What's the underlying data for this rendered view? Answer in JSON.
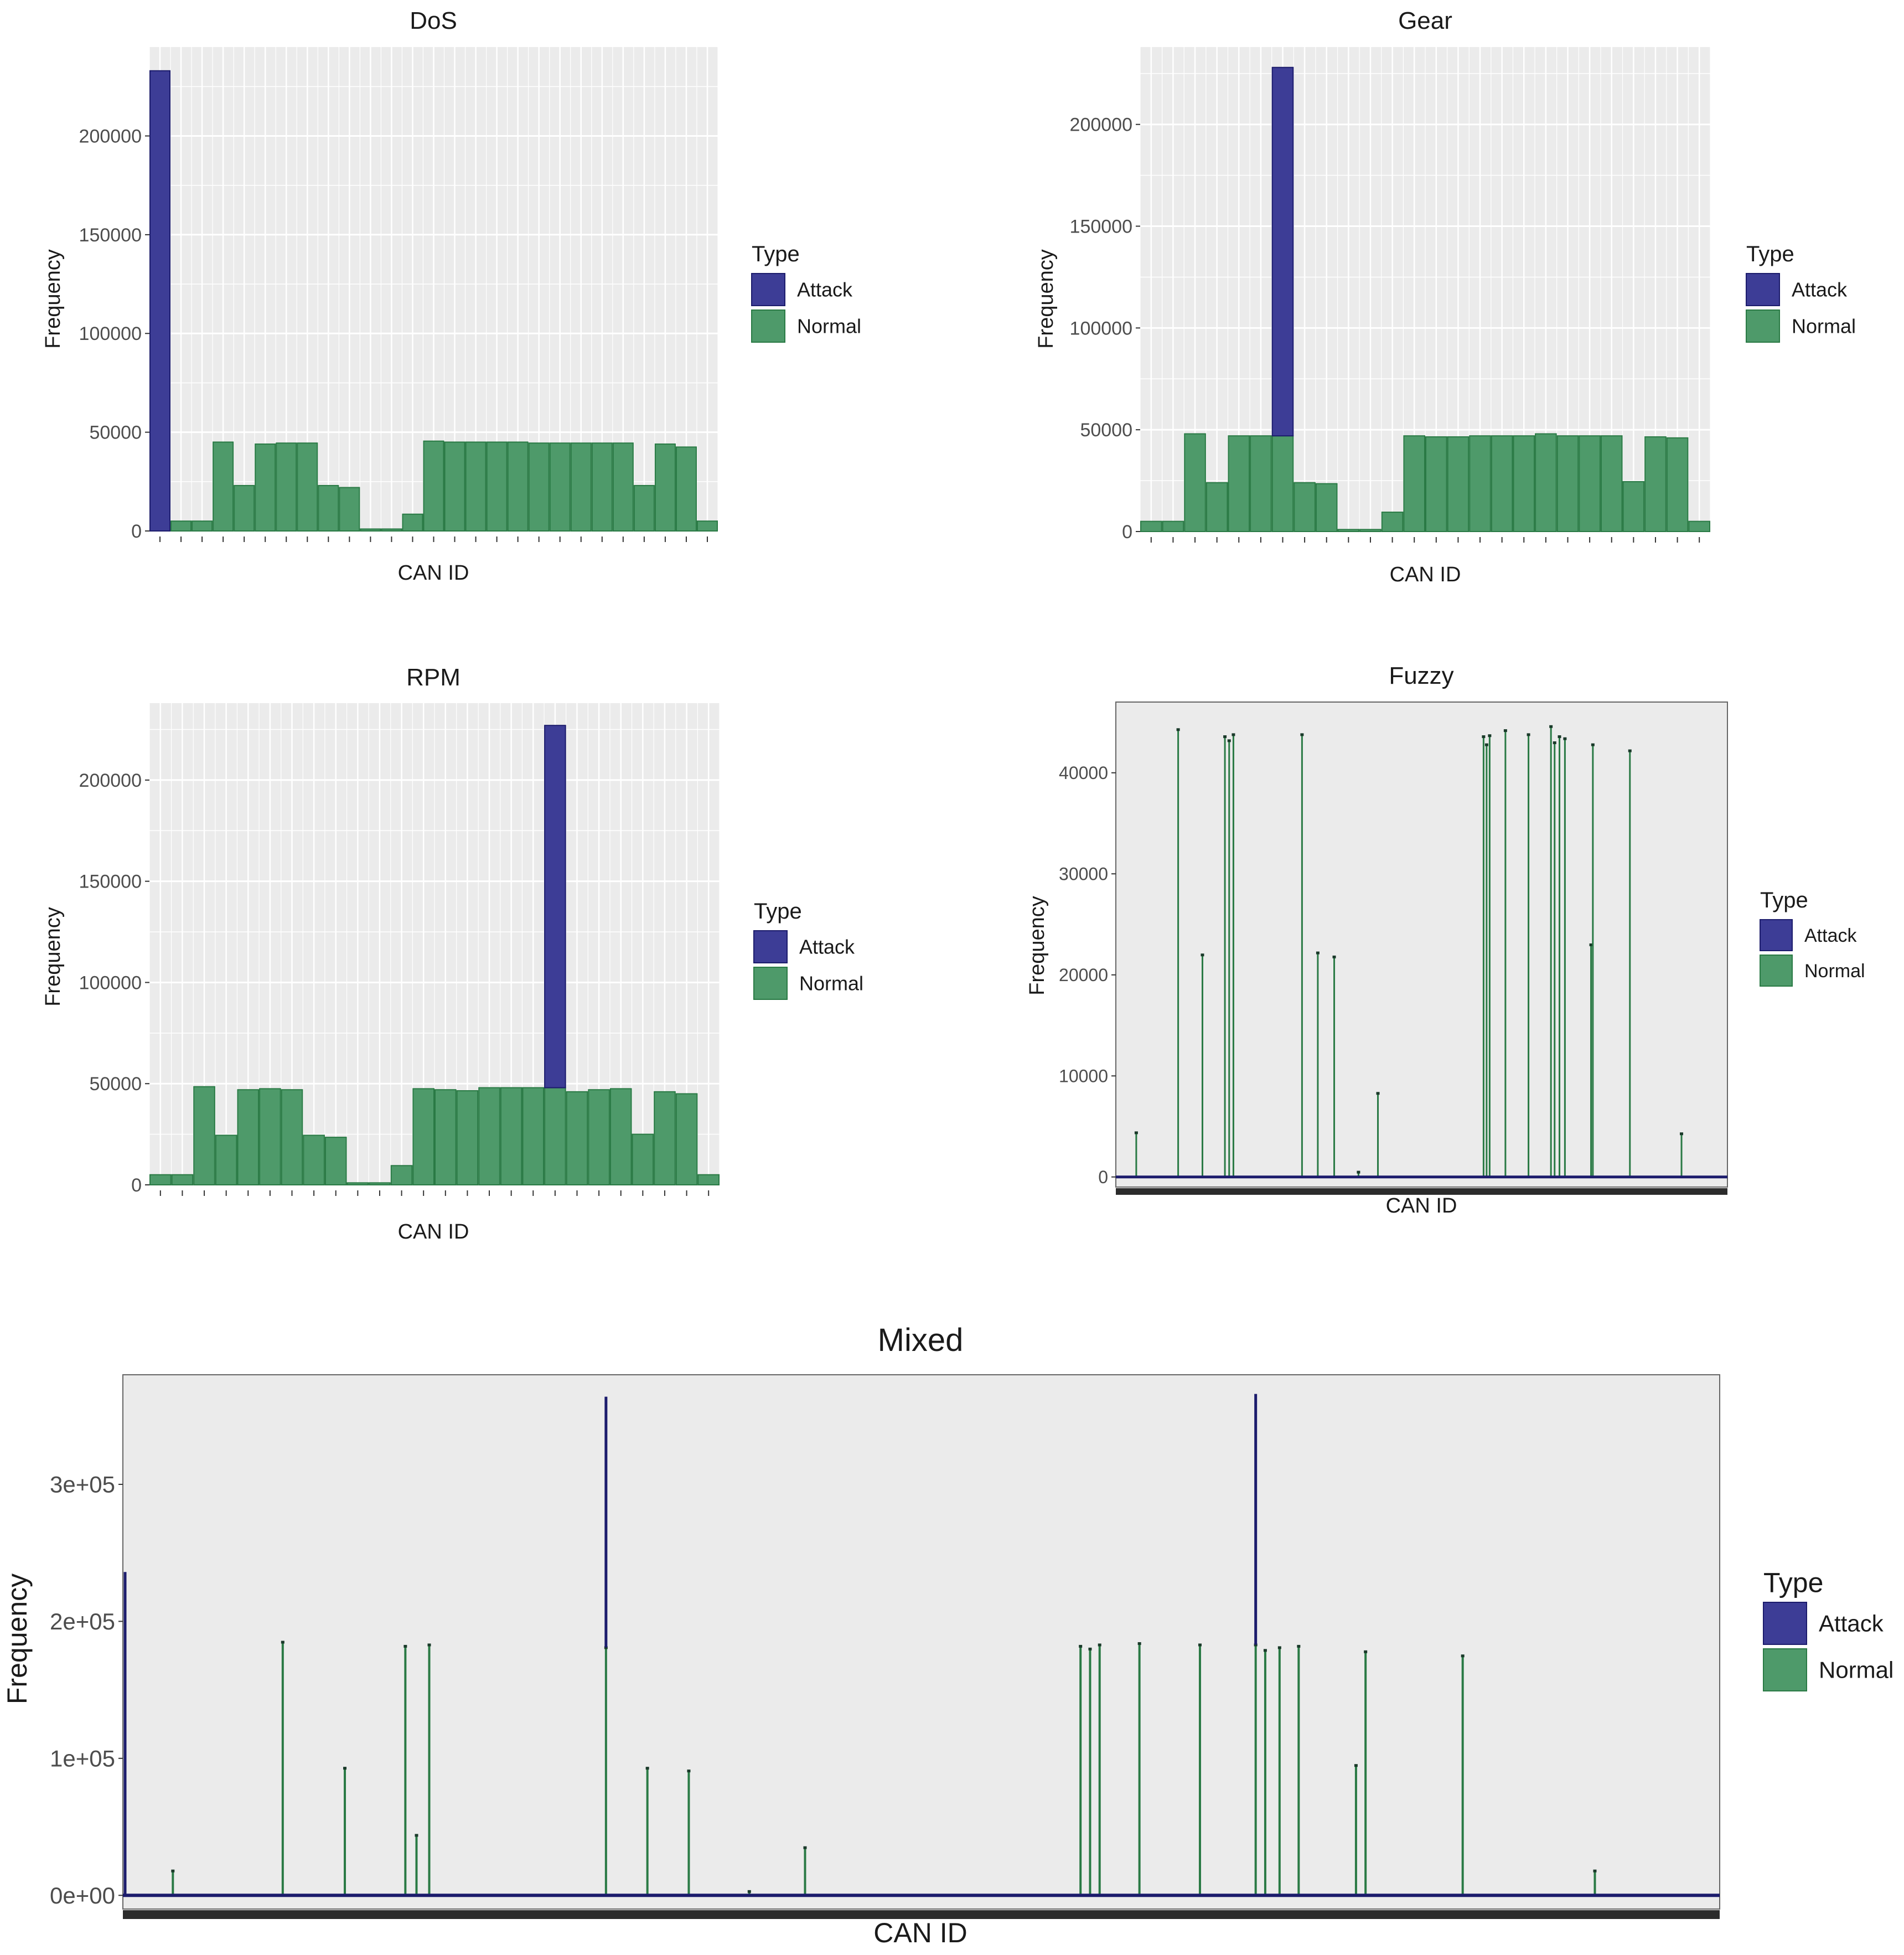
{
  "colors": {
    "attack": "#3d3d96",
    "normal": "#4e9a6a",
    "attack_line": "#1c1c6c",
    "normal_line": "#2a7a45",
    "panel": "#ebebeb",
    "grid": "#ffffff"
  },
  "chart_data": [
    {
      "id": "dos",
      "type": "bar",
      "title": "DoS",
      "xlabel": "CAN ID",
      "ylabel": "Frequency",
      "ylim": [
        0,
        245000
      ],
      "yticks": [
        0,
        50000,
        100000,
        150000,
        200000
      ],
      "ytick_labels": [
        "0",
        "50000",
        "100000",
        "150000",
        "200000"
      ],
      "legend": {
        "title": "Type",
        "entries": [
          "Attack",
          "Normal"
        ],
        "position": "right"
      },
      "series": [
        {
          "name": "Attack",
          "values": [
            233000,
            0,
            0,
            0,
            0,
            0,
            0,
            0,
            0,
            0,
            0,
            0,
            0,
            0,
            0,
            0,
            0,
            0,
            0,
            0,
            0,
            0,
            0,
            0,
            0,
            0,
            0
          ]
        },
        {
          "name": "Normal",
          "values": [
            0,
            5000,
            5000,
            45000,
            23000,
            44000,
            44500,
            44500,
            23000,
            22000,
            1000,
            1000,
            8500,
            45500,
            45000,
            45000,
            45000,
            45000,
            44500,
            44500,
            44500,
            44500,
            44500,
            23000,
            44000,
            42500,
            5000
          ]
        }
      ]
    },
    {
      "id": "gear",
      "type": "bar",
      "title": "Gear",
      "xlabel": "CAN ID",
      "ylabel": "Frequency",
      "ylim": [
        0,
        238000
      ],
      "yticks": [
        0,
        50000,
        100000,
        150000,
        200000
      ],
      "ytick_labels": [
        "0",
        "50000",
        "100000",
        "150000",
        "200000"
      ],
      "legend": {
        "title": "Type",
        "entries": [
          "Attack",
          "Normal"
        ],
        "position": "right"
      },
      "series": [
        {
          "name": "Normal",
          "values": [
            5000,
            5000,
            48000,
            24000,
            47000,
            47000,
            47000,
            24000,
            23500,
            1000,
            1000,
            9500,
            47000,
            46500,
            46500,
            47000,
            47000,
            47000,
            48000,
            47000,
            47000,
            47000,
            24500,
            46500,
            46000,
            5000
          ]
        },
        {
          "name": "Attack",
          "values": [
            0,
            0,
            0,
            0,
            0,
            0,
            181000,
            0,
            0,
            0,
            0,
            0,
            0,
            0,
            0,
            0,
            0,
            0,
            0,
            0,
            0,
            0,
            0,
            0,
            0,
            0
          ]
        }
      ]
    },
    {
      "id": "rpm",
      "type": "bar",
      "title": "RPM",
      "xlabel": "CAN ID",
      "ylabel": "Frequency",
      "ylim": [
        0,
        238000
      ],
      "yticks": [
        0,
        50000,
        100000,
        150000,
        200000
      ],
      "ytick_labels": [
        "0",
        "50000",
        "100000",
        "150000",
        "200000"
      ],
      "legend": {
        "title": "Type",
        "entries": [
          "Attack",
          "Normal"
        ],
        "position": "right"
      },
      "series": [
        {
          "name": "Normal",
          "values": [
            5000,
            5000,
            48500,
            24500,
            47000,
            47500,
            47000,
            24500,
            23500,
            1000,
            1000,
            9500,
            47500,
            47000,
            46500,
            48000,
            48000,
            48000,
            48000,
            46000,
            47000,
            47500,
            25000,
            46000,
            45000,
            5000
          ]
        },
        {
          "name": "Attack",
          "values": [
            0,
            0,
            0,
            0,
            0,
            0,
            0,
            0,
            0,
            0,
            0,
            0,
            0,
            0,
            0,
            0,
            0,
            0,
            179000,
            0,
            0,
            0,
            0,
            0,
            0,
            0
          ]
        }
      ]
    },
    {
      "id": "fuzzy",
      "type": "bar",
      "title": "Fuzzy",
      "xlabel": "CAN ID",
      "ylabel": "Frequency",
      "ylim": [
        -1000,
        47000
      ],
      "yticks": [
        0,
        10000,
        20000,
        30000,
        40000
      ],
      "ytick_labels": [
        "0",
        "10000",
        "20000",
        "30000",
        "40000"
      ],
      "legend": {
        "title": "Type",
        "entries": [
          "Attack",
          "Normal"
        ],
        "position": "right"
      },
      "x_domain": [
        0,
        1000
      ],
      "spikes": [
        {
          "x": 30,
          "value": 4400
        },
        {
          "x": 99,
          "value": 44300
        },
        {
          "x": 139,
          "value": 22000
        },
        {
          "x": 176,
          "value": 43600
        },
        {
          "x": 183,
          "value": 43200
        },
        {
          "x": 190,
          "value": 43800
        },
        {
          "x": 303,
          "value": 43800
        },
        {
          "x": 329,
          "value": 22200
        },
        {
          "x": 356,
          "value": 21800
        },
        {
          "x": 396,
          "value": 500
        },
        {
          "x": 428,
          "value": 8300
        },
        {
          "x": 602,
          "value": 43600
        },
        {
          "x": 607,
          "value": 42800
        },
        {
          "x": 612,
          "value": 43700
        },
        {
          "x": 638,
          "value": 44200
        },
        {
          "x": 676,
          "value": 43800
        },
        {
          "x": 713,
          "value": 44600
        },
        {
          "x": 719,
          "value": 43000
        },
        {
          "x": 727,
          "value": 43600
        },
        {
          "x": 736,
          "value": 43400
        },
        {
          "x": 779,
          "value": 23000
        },
        {
          "x": 782,
          "value": 42800
        },
        {
          "x": 843,
          "value": 42200
        },
        {
          "x": 928,
          "value": 4300
        }
      ]
    },
    {
      "id": "mixed",
      "type": "bar",
      "title": "Mixed",
      "xlabel": "CAN ID",
      "ylabel": "Frequency",
      "ylim": [
        -10000,
        380000
      ],
      "yticks": [
        0,
        100000,
        200000,
        300000
      ],
      "ytick_labels": [
        "0e+00",
        "1e+05",
        "2e+05",
        "3e+05"
      ],
      "legend": {
        "title": "Type",
        "entries": [
          "Attack",
          "Normal"
        ],
        "position": "right"
      },
      "x_domain": [
        0,
        1000
      ],
      "spikes": [
        {
          "x": 0,
          "normal": 0,
          "attack": 236000
        },
        {
          "x": 30,
          "normal": 18000,
          "attack": 0
        },
        {
          "x": 99,
          "normal": 185000,
          "attack": 0
        },
        {
          "x": 138,
          "normal": 93000,
          "attack": 0
        },
        {
          "x": 176,
          "normal": 182000,
          "attack": 0
        },
        {
          "x": 183,
          "normal": 44000,
          "attack": 0
        },
        {
          "x": 191,
          "normal": 183000,
          "attack": 0
        },
        {
          "x": 302,
          "normal": 181000,
          "attack": 183000
        },
        {
          "x": 328,
          "normal": 93000,
          "attack": 0
        },
        {
          "x": 354,
          "normal": 91000,
          "attack": 0
        },
        {
          "x": 392,
          "normal": 3000,
          "attack": 0
        },
        {
          "x": 427,
          "normal": 35000,
          "attack": 0
        },
        {
          "x": 600,
          "normal": 182000,
          "attack": 0
        },
        {
          "x": 606,
          "normal": 180000,
          "attack": 0
        },
        {
          "x": 612,
          "normal": 183000,
          "attack": 0
        },
        {
          "x": 637,
          "normal": 184000,
          "attack": 0
        },
        {
          "x": 675,
          "normal": 183000,
          "attack": 0
        },
        {
          "x": 710,
          "normal": 183000,
          "attack": 183000
        },
        {
          "x": 716,
          "normal": 179000,
          "attack": 0
        },
        {
          "x": 725,
          "normal": 181000,
          "attack": 0
        },
        {
          "x": 737,
          "normal": 182000,
          "attack": 0
        },
        {
          "x": 773,
          "normal": 95000,
          "attack": 0
        },
        {
          "x": 779,
          "normal": 178000,
          "attack": 0
        },
        {
          "x": 840,
          "normal": 175000,
          "attack": 0
        },
        {
          "x": 923,
          "normal": 18000,
          "attack": 0
        }
      ]
    }
  ]
}
